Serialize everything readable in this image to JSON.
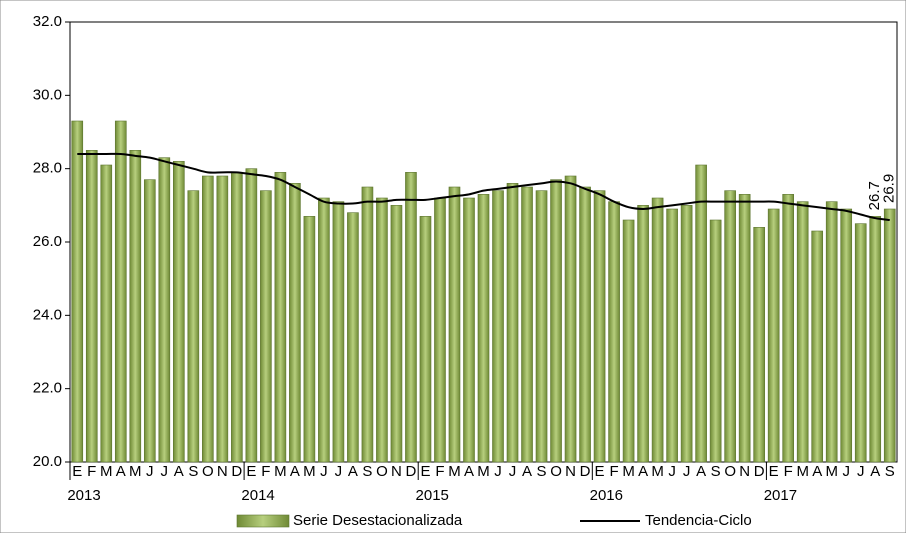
{
  "chart_data": {
    "type": "bar",
    "categories": [
      "E",
      "F",
      "M",
      "A",
      "M",
      "J",
      "J",
      "A",
      "S",
      "O",
      "N",
      "D",
      "E",
      "F",
      "M",
      "A",
      "M",
      "J",
      "J",
      "A",
      "S",
      "O",
      "N",
      "D",
      "E",
      "F",
      "M",
      "A",
      "M",
      "J",
      "J",
      "A",
      "S",
      "O",
      "N",
      "D",
      "E",
      "F",
      "M",
      "A",
      "M",
      "J",
      "J",
      "A",
      "S",
      "O",
      "N",
      "D",
      "E",
      "F",
      "M",
      "A",
      "M",
      "J",
      "J",
      "A",
      "S"
    ],
    "years": [
      "2013",
      "2014",
      "2015",
      "2016",
      "2017"
    ],
    "series": [
      {
        "name": "Serie Desestacionalizada",
        "type": "bar",
        "color": "#9bbb59",
        "values": [
          29.3,
          28.5,
          28.1,
          29.3,
          28.5,
          27.7,
          28.3,
          28.2,
          27.4,
          27.8,
          27.8,
          27.9,
          28.0,
          27.4,
          27.9,
          27.6,
          26.7,
          27.2,
          27.1,
          26.8,
          27.5,
          27.2,
          27.0,
          27.9,
          26.7,
          27.2,
          27.5,
          27.2,
          27.3,
          27.4,
          27.6,
          27.5,
          27.4,
          27.7,
          27.8,
          27.5,
          27.4,
          27.1,
          26.6,
          27.0,
          27.2,
          26.9,
          27.0,
          28.1,
          26.6,
          27.4,
          27.3,
          26.4,
          26.9,
          27.3,
          27.1,
          26.3,
          27.1,
          26.9,
          26.5,
          26.7,
          26.9
        ],
        "value_labels": [
          null,
          null,
          null,
          null,
          null,
          null,
          null,
          null,
          null,
          null,
          null,
          null,
          null,
          null,
          null,
          null,
          null,
          null,
          null,
          null,
          null,
          null,
          null,
          null,
          null,
          null,
          null,
          null,
          null,
          null,
          null,
          null,
          null,
          null,
          null,
          null,
          null,
          null,
          null,
          null,
          null,
          null,
          null,
          null,
          null,
          null,
          null,
          null,
          null,
          null,
          null,
          null,
          null,
          null,
          null,
          "26.7",
          "26.9"
        ]
      },
      {
        "name": "Tendencia-Ciclo",
        "type": "line",
        "color": "#000000",
        "values": [
          28.4,
          28.4,
          28.4,
          28.4,
          28.35,
          28.3,
          28.2,
          28.1,
          28.0,
          27.9,
          27.9,
          27.9,
          27.85,
          27.8,
          27.7,
          27.5,
          27.3,
          27.1,
          27.05,
          27.05,
          27.1,
          27.1,
          27.15,
          27.15,
          27.15,
          27.2,
          27.25,
          27.3,
          27.4,
          27.45,
          27.5,
          27.55,
          27.6,
          27.65,
          27.6,
          27.45,
          27.3,
          27.1,
          26.95,
          26.9,
          26.95,
          27.0,
          27.05,
          27.1,
          27.1,
          27.1,
          27.1,
          27.1,
          27.1,
          27.05,
          27.0,
          26.95,
          26.9,
          26.85,
          26.75,
          26.65,
          26.6
        ]
      }
    ],
    "ylim": [
      20,
      32
    ],
    "yticks": [
      {
        "value": 20,
        "label": "20.0"
      },
      {
        "value": 22,
        "label": "22.0"
      },
      {
        "value": 24,
        "label": "24.0"
      },
      {
        "value": 26,
        "label": "26.0"
      },
      {
        "value": 28,
        "label": "28.0"
      },
      {
        "value": 30,
        "label": "30.0"
      },
      {
        "value": 32,
        "label": "32.0"
      }
    ],
    "grid": false,
    "legend": "bottom"
  }
}
